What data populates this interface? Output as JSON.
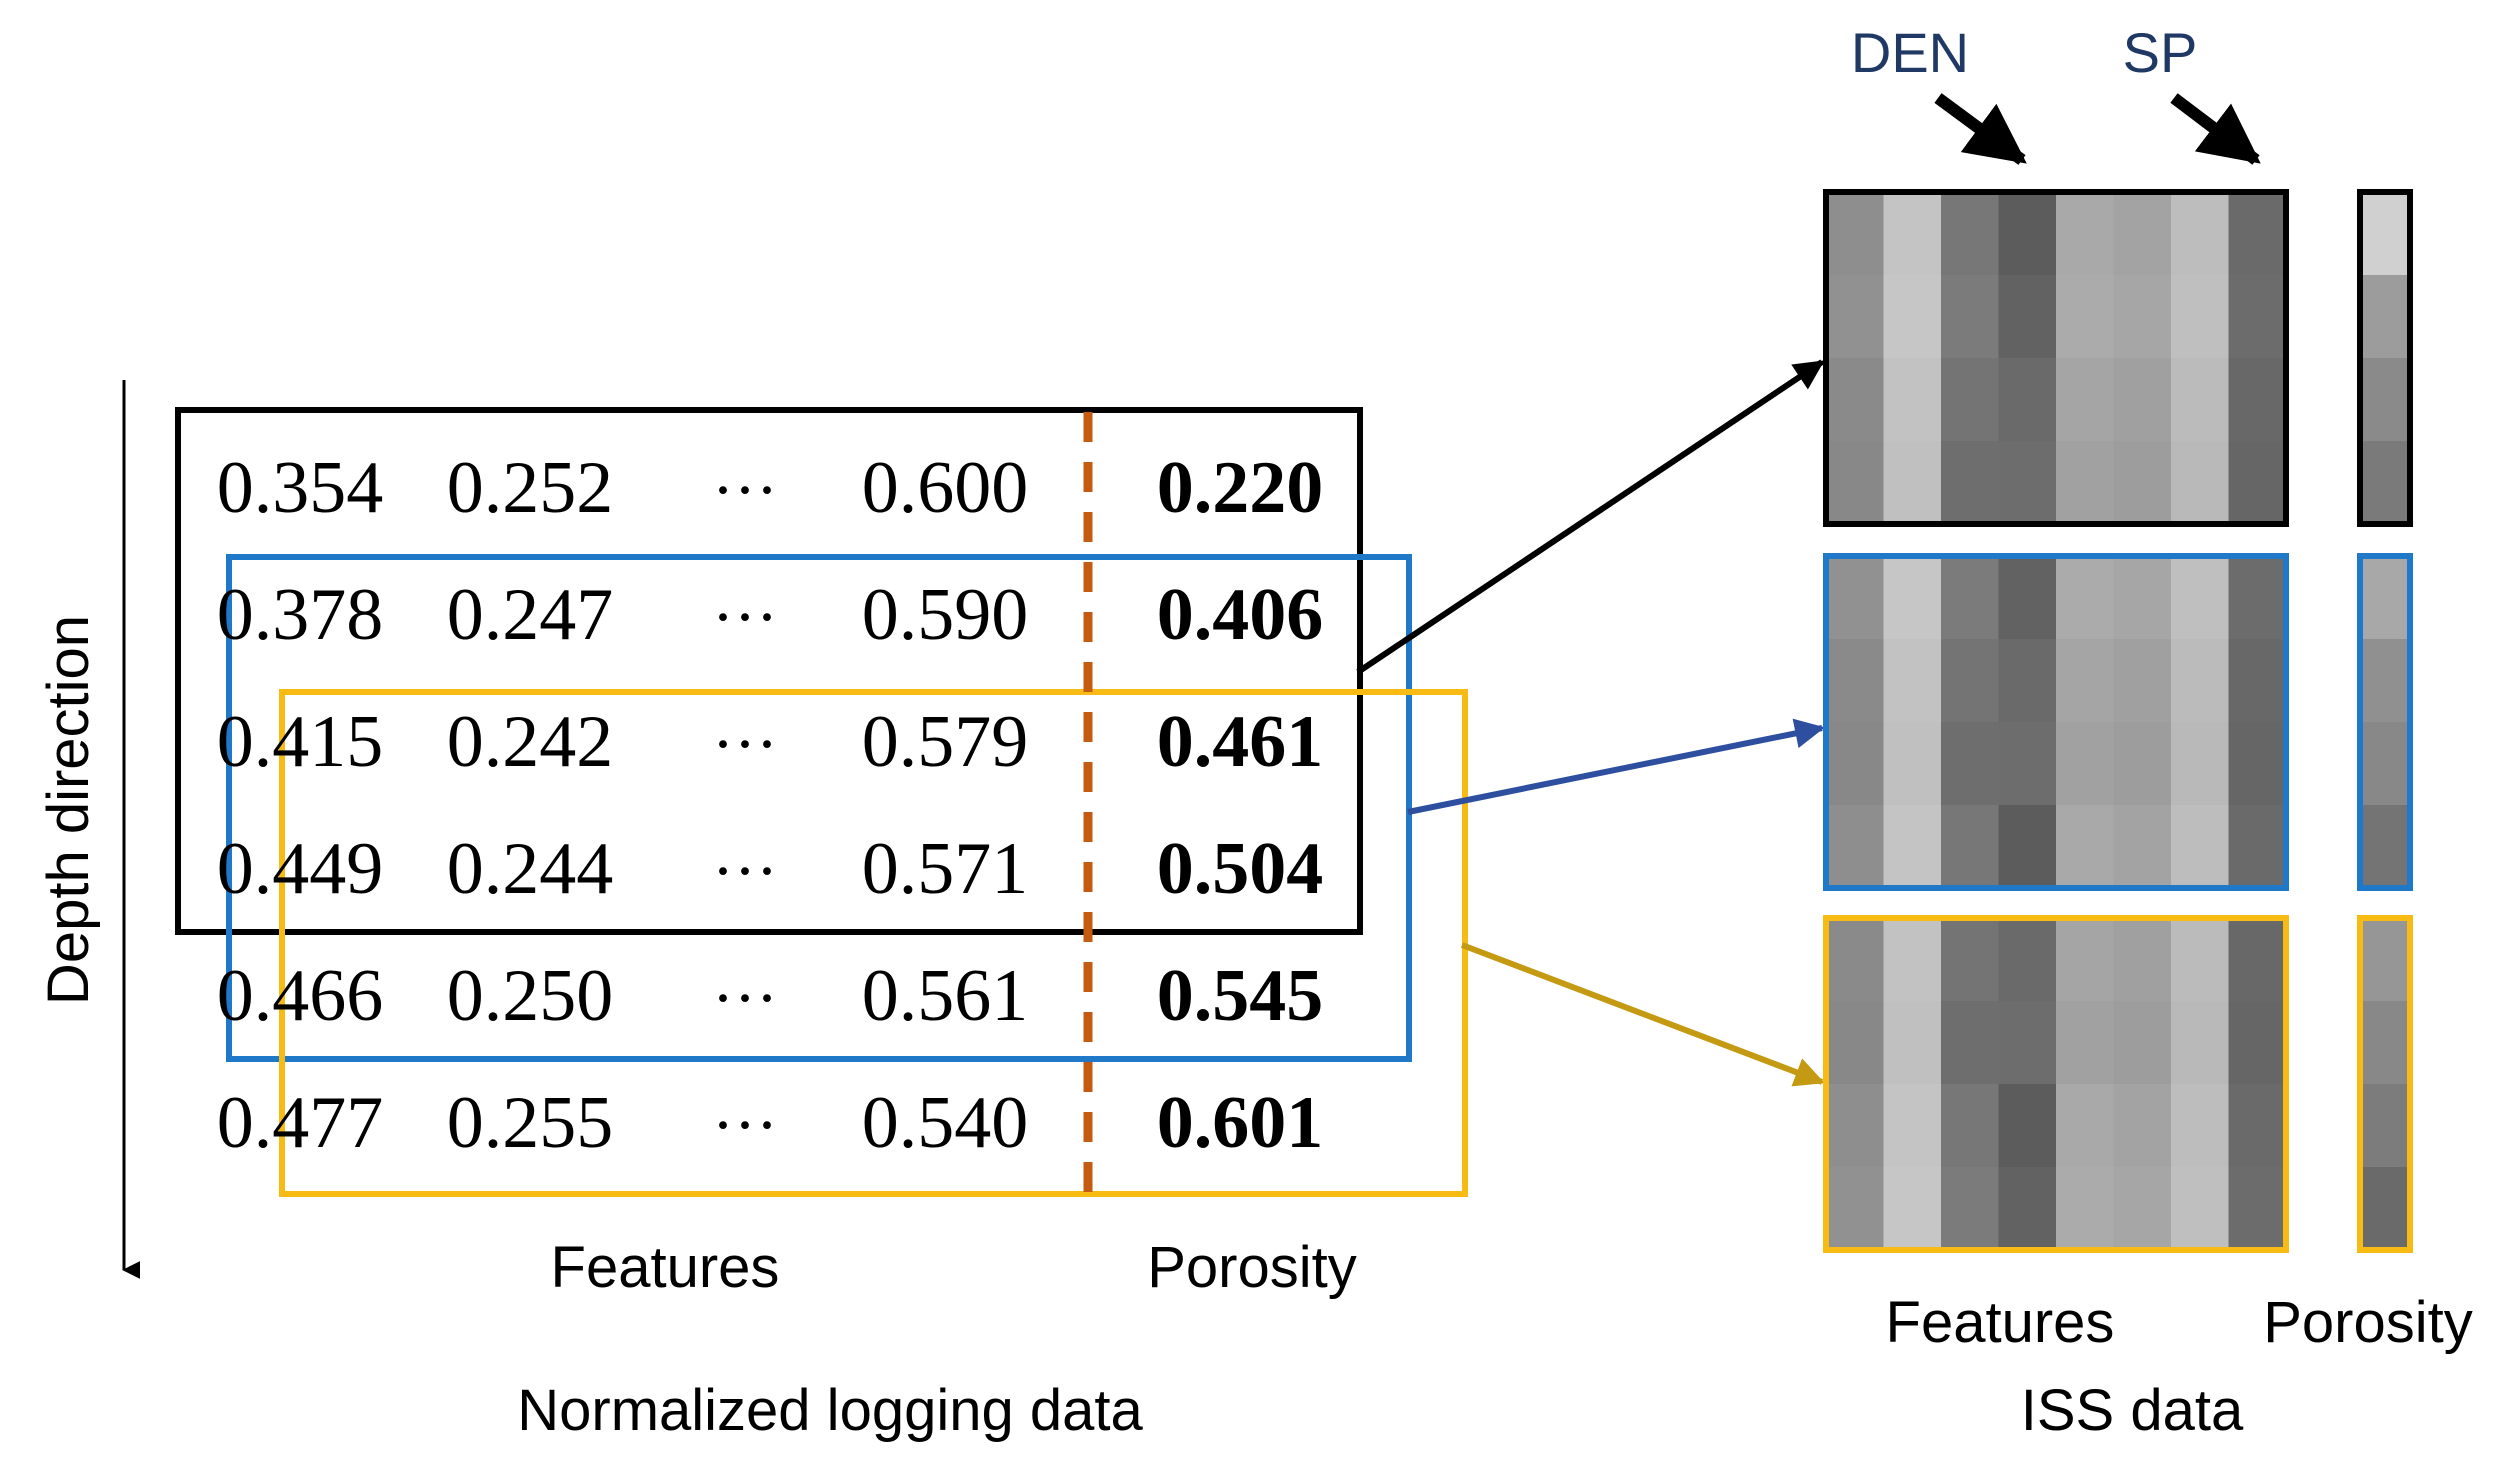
{
  "left_panel": {
    "rows": [
      {
        "f1": "0.354",
        "f2": "0.252",
        "dots": "···",
        "fn": "0.600",
        "porosity": "0.220"
      },
      {
        "f1": "0.378",
        "f2": "0.247",
        "dots": "···",
        "fn": "0.590",
        "porosity": "0.406"
      },
      {
        "f1": "0.415",
        "f2": "0.242",
        "dots": "···",
        "fn": "0.579",
        "porosity": "0.461"
      },
      {
        "f1": "0.449",
        "f2": "0.244",
        "dots": "···",
        "fn": "0.571",
        "porosity": "0.504"
      },
      {
        "f1": "0.466",
        "f2": "0.250",
        "dots": "···",
        "fn": "0.561",
        "porosity": "0.545"
      },
      {
        "f1": "0.477",
        "f2": "0.255",
        "dots": "···",
        "fn": "0.540",
        "porosity": "0.601"
      }
    ],
    "axis_label": "Depth direction",
    "features_label": "Features",
    "porosity_label": "Porosity",
    "caption": "Normalized logging data"
  },
  "right_panel": {
    "den_label": "DEN",
    "sp_label": "SP",
    "features_label": "Features",
    "porosity_label": "Porosity",
    "caption": "ISS data"
  },
  "colors": {
    "black_window": "#000000",
    "blue_window": "#1f78c8",
    "yellow_window": "#f8bb13",
    "divider": "#c55a11",
    "blue_arrow": "#2e4fa0",
    "yellow_arrow": "#c49a12",
    "label_navy": "#1f3864"
  }
}
